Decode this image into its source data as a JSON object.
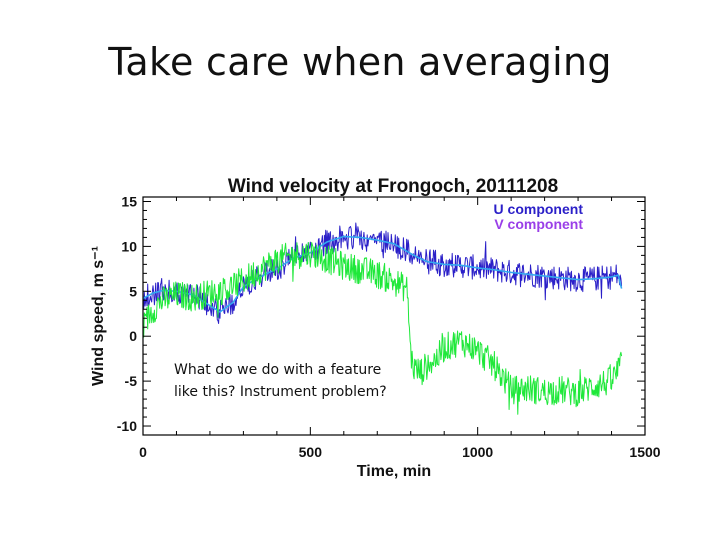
{
  "slide": {
    "title": "Take care when averaging",
    "callout_text": "What do we do with a feature like this? Instrument problem?"
  },
  "chart_data": {
    "type": "line",
    "title": "Wind velocity at Frongoch, 20111208",
    "xlabel": "Time, min",
    "ylabel": "Wind speed, m s⁻¹",
    "xlim": [
      0,
      1500
    ],
    "ylim": [
      -11,
      15.5
    ],
    "xticks": [
      0,
      500,
      1000,
      1500
    ],
    "yticks": [
      -10,
      -5,
      0,
      5,
      10,
      15
    ],
    "x_tick_labels": [
      "0",
      "500",
      "1000",
      "1500"
    ],
    "y_tick_labels": [
      "-10",
      "-5",
      "0",
      "5",
      "10",
      "15"
    ],
    "legend": [
      "U component",
      "V component"
    ],
    "colors": {
      "u_raw": "#2a1fc8",
      "u_smooth": "#33a8f0",
      "v_raw": "#1fe83a",
      "frame": "#000000"
    },
    "series": [
      {
        "name": "U component",
        "color": "#2a1fc8",
        "smooth_color": "#33a8f0",
        "x": [
          0,
          30,
          60,
          100,
          150,
          200,
          230,
          270,
          300,
          330,
          360,
          400,
          450,
          500,
          550,
          600,
          650,
          700,
          750,
          800,
          820,
          850,
          900,
          950,
          1000,
          1050,
          1100,
          1150,
          1200,
          1250,
          1300,
          1350,
          1400,
          1420,
          1430
        ],
        "values": [
          4.2,
          4.8,
          5.1,
          5.0,
          4.6,
          3.4,
          2.7,
          3.8,
          5.5,
          6.2,
          6.8,
          7.5,
          8.7,
          9.3,
          10.5,
          11.1,
          11.0,
          10.7,
          10.3,
          9.2,
          8.8,
          8.3,
          8.0,
          7.9,
          7.6,
          7.4,
          7.1,
          6.9,
          6.7,
          6.5,
          6.3,
          6.4,
          6.6,
          6.8,
          5.3
        ],
        "noise_amplitude": 1.4
      },
      {
        "name": "V component",
        "color": "#1fe83a",
        "x": [
          0,
          20,
          50,
          100,
          150,
          200,
          250,
          300,
          350,
          400,
          450,
          500,
          550,
          600,
          650,
          700,
          750,
          790,
          800,
          810,
          830,
          850,
          880,
          900,
          950,
          1000,
          1050,
          1080,
          1100,
          1150,
          1200,
          1250,
          1300,
          1350,
          1400,
          1430
        ],
        "values": [
          1.0,
          2.5,
          3.8,
          4.6,
          4.3,
          4.8,
          5.2,
          6.2,
          7.4,
          8.5,
          9.0,
          9.3,
          8.6,
          7.8,
          7.4,
          6.9,
          6.1,
          5.2,
          -2.0,
          -3.6,
          -4.0,
          -3.2,
          -2.4,
          -1.3,
          -0.5,
          -1.6,
          -3.3,
          -4.8,
          -6.0,
          -5.8,
          -6.2,
          -6.0,
          -6.3,
          -5.5,
          -5.0,
          -3.2
        ],
        "noise_amplitude": 1.6
      }
    ]
  }
}
